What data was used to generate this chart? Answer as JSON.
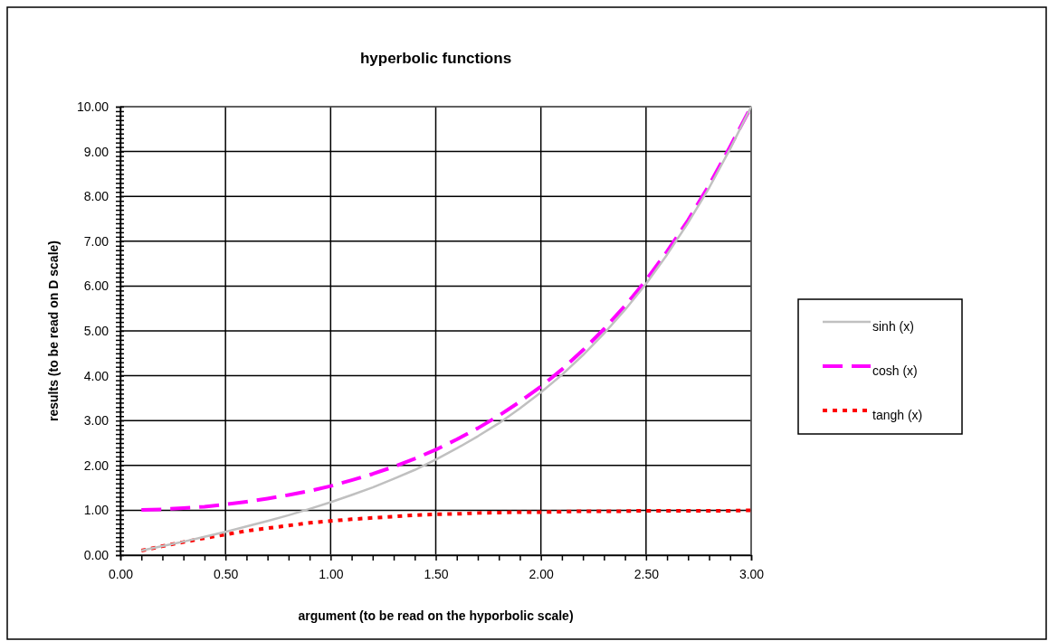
{
  "chart_data": {
    "type": "line",
    "title": "hyperbolic functions",
    "xlabel": "argument (to be read on the hyporbolic scale)",
    "ylabel": "results (to be read on D scale)",
    "x": [
      0.1,
      0.2,
      0.3,
      0.4,
      0.5,
      0.6,
      0.7,
      0.8,
      0.9,
      1.0,
      1.1,
      1.2,
      1.3,
      1.4,
      1.5,
      1.6,
      1.7,
      1.8,
      1.9,
      2.0,
      2.1,
      2.2,
      2.3,
      2.4,
      2.5,
      2.6,
      2.7,
      2.8,
      2.9,
      3.0
    ],
    "series": [
      {
        "name": "sinh (x)",
        "color": "#c0c0c0",
        "line_style": "solid",
        "values": [
          0.1,
          0.2,
          0.3,
          0.41,
          0.52,
          0.64,
          0.76,
          0.89,
          1.03,
          1.18,
          1.34,
          1.51,
          1.7,
          1.9,
          2.13,
          2.38,
          2.65,
          2.94,
          3.27,
          3.63,
          4.02,
          4.46,
          4.94,
          5.47,
          6.05,
          6.7,
          7.41,
          8.19,
          9.06,
          10.0
        ]
      },
      {
        "name": "cosh (x)",
        "color": "#ff00ff",
        "line_style": "dashed",
        "values": [
          1.01,
          1.02,
          1.05,
          1.08,
          1.13,
          1.19,
          1.26,
          1.34,
          1.43,
          1.54,
          1.67,
          1.81,
          1.97,
          2.15,
          2.35,
          2.58,
          2.83,
          3.11,
          3.42,
          3.76,
          4.14,
          4.57,
          5.04,
          5.56,
          6.13,
          6.77,
          7.47,
          8.25,
          9.11,
          10.0
        ]
      },
      {
        "name": "tangh (x)",
        "color": "#ff0000",
        "line_style": "dotted",
        "values": [
          0.1,
          0.2,
          0.29,
          0.38,
          0.46,
          0.54,
          0.6,
          0.66,
          0.72,
          0.76,
          0.8,
          0.83,
          0.86,
          0.89,
          0.91,
          0.92,
          0.94,
          0.95,
          0.96,
          0.96,
          0.97,
          0.98,
          0.98,
          0.98,
          0.99,
          0.99,
          0.99,
          0.99,
          0.99,
          1.0
        ]
      }
    ],
    "xlim": [
      0,
      3
    ],
    "ylim": [
      0,
      10
    ],
    "xticks": [
      {
        "value": 0,
        "label": "0.00"
      },
      {
        "value": 0.1,
        "label": null
      },
      {
        "value": 0.2,
        "label": null
      },
      {
        "value": 0.3,
        "label": null
      },
      {
        "value": 0.4,
        "label": null
      },
      {
        "value": 0.5,
        "label": "0.50"
      },
      {
        "value": 0.6,
        "label": null
      },
      {
        "value": 0.7,
        "label": null
      },
      {
        "value": 0.8,
        "label": null
      },
      {
        "value": 0.9,
        "label": null
      },
      {
        "value": 1,
        "label": "1.00"
      },
      {
        "value": 1.1,
        "label": null
      },
      {
        "value": 1.2,
        "label": null
      },
      {
        "value": 1.3,
        "label": null
      },
      {
        "value": 1.4,
        "label": null
      },
      {
        "value": 1.5,
        "label": "1.50"
      },
      {
        "value": 1.6,
        "label": null
      },
      {
        "value": 1.7,
        "label": null
      },
      {
        "value": 1.8,
        "label": null
      },
      {
        "value": 1.9,
        "label": null
      },
      {
        "value": 2,
        "label": "2.00"
      },
      {
        "value": 2.1,
        "label": null
      },
      {
        "value": 2.2,
        "label": null
      },
      {
        "value": 2.3,
        "label": null
      },
      {
        "value": 2.4,
        "label": null
      },
      {
        "value": 2.5,
        "label": "2.50"
      },
      {
        "value": 2.6,
        "label": null
      },
      {
        "value": 2.7,
        "label": null
      },
      {
        "value": 2.8,
        "label": null
      },
      {
        "value": 2.9,
        "label": null
      },
      {
        "value": 3,
        "label": "3.00"
      }
    ],
    "yticks": [
      {
        "value": 0,
        "label": "0.00"
      },
      {
        "value": 0.1,
        "label": null
      },
      {
        "value": 0.2,
        "label": null
      },
      {
        "value": 0.3,
        "label": null
      },
      {
        "value": 0.4,
        "label": null
      },
      {
        "value": 0.5,
        "label": null
      },
      {
        "value": 0.6,
        "label": null
      },
      {
        "value": 0.7,
        "label": null
      },
      {
        "value": 0.8,
        "label": null
      },
      {
        "value": 0.9,
        "label": null
      },
      {
        "value": 1,
        "label": "1.00"
      },
      {
        "value": 1.1,
        "label": null
      },
      {
        "value": 1.2,
        "label": null
      },
      {
        "value": 1.3,
        "label": null
      },
      {
        "value": 1.4,
        "label": null
      },
      {
        "value": 1.5,
        "label": null
      },
      {
        "value": 1.6,
        "label": null
      },
      {
        "value": 1.7,
        "label": null
      },
      {
        "value": 1.8,
        "label": null
      },
      {
        "value": 1.9,
        "label": null
      },
      {
        "value": 2,
        "label": "2.00"
      },
      {
        "value": 2.1,
        "label": null
      },
      {
        "value": 2.2,
        "label": null
      },
      {
        "value": 2.3,
        "label": null
      },
      {
        "value": 2.4,
        "label": null
      },
      {
        "value": 2.5,
        "label": null
      },
      {
        "value": 2.6,
        "label": null
      },
      {
        "value": 2.7,
        "label": null
      },
      {
        "value": 2.8,
        "label": null
      },
      {
        "value": 2.9,
        "label": null
      },
      {
        "value": 3,
        "label": "3.00"
      },
      {
        "value": 3.1,
        "label": null
      },
      {
        "value": 3.2,
        "label": null
      },
      {
        "value": 3.3,
        "label": null
      },
      {
        "value": 3.4,
        "label": null
      },
      {
        "value": 3.5,
        "label": null
      },
      {
        "value": 3.6,
        "label": null
      },
      {
        "value": 3.7,
        "label": null
      },
      {
        "value": 3.8,
        "label": null
      },
      {
        "value": 3.9,
        "label": null
      },
      {
        "value": 4,
        "label": "4.00"
      },
      {
        "value": 4.1,
        "label": null
      },
      {
        "value": 4.2,
        "label": null
      },
      {
        "value": 4.3,
        "label": null
      },
      {
        "value": 4.4,
        "label": null
      },
      {
        "value": 4.5,
        "label": null
      },
      {
        "value": 4.6,
        "label": null
      },
      {
        "value": 4.7,
        "label": null
      },
      {
        "value": 4.8,
        "label": null
      },
      {
        "value": 4.9,
        "label": null
      },
      {
        "value": 5,
        "label": "5.00"
      },
      {
        "value": 5.1,
        "label": null
      },
      {
        "value": 5.2,
        "label": null
      },
      {
        "value": 5.3,
        "label": null
      },
      {
        "value": 5.4,
        "label": null
      },
      {
        "value": 5.5,
        "label": null
      },
      {
        "value": 5.6,
        "label": null
      },
      {
        "value": 5.7,
        "label": null
      },
      {
        "value": 5.8,
        "label": null
      },
      {
        "value": 5.9,
        "label": null
      },
      {
        "value": 6,
        "label": "6.00"
      },
      {
        "value": 6.1,
        "label": null
      },
      {
        "value": 6.2,
        "label": null
      },
      {
        "value": 6.3,
        "label": null
      },
      {
        "value": 6.4,
        "label": null
      },
      {
        "value": 6.5,
        "label": null
      },
      {
        "value": 6.6,
        "label": null
      },
      {
        "value": 6.7,
        "label": null
      },
      {
        "value": 6.8,
        "label": null
      },
      {
        "value": 6.9,
        "label": null
      },
      {
        "value": 7,
        "label": "7.00"
      },
      {
        "value": 7.1,
        "label": null
      },
      {
        "value": 7.2,
        "label": null
      },
      {
        "value": 7.3,
        "label": null
      },
      {
        "value": 7.4,
        "label": null
      },
      {
        "value": 7.5,
        "label": null
      },
      {
        "value": 7.6,
        "label": null
      },
      {
        "value": 7.7,
        "label": null
      },
      {
        "value": 7.8,
        "label": null
      },
      {
        "value": 7.9,
        "label": null
      },
      {
        "value": 8,
        "label": "8.00"
      },
      {
        "value": 8.1,
        "label": null
      },
      {
        "value": 8.2,
        "label": null
      },
      {
        "value": 8.3,
        "label": null
      },
      {
        "value": 8.4,
        "label": null
      },
      {
        "value": 8.5,
        "label": null
      },
      {
        "value": 8.6,
        "label": null
      },
      {
        "value": 8.7,
        "label": null
      },
      {
        "value": 8.8,
        "label": null
      },
      {
        "value": 8.9,
        "label": null
      },
      {
        "value": 9,
        "label": "9.00"
      },
      {
        "value": 9.1,
        "label": null
      },
      {
        "value": 9.2,
        "label": null
      },
      {
        "value": 9.3,
        "label": null
      },
      {
        "value": 9.4,
        "label": null
      },
      {
        "value": 9.5,
        "label": null
      },
      {
        "value": 9.6,
        "label": null
      },
      {
        "value": 9.7,
        "label": null
      },
      {
        "value": 9.8,
        "label": null
      },
      {
        "value": 9.9,
        "label": null
      },
      {
        "value": 10,
        "label": "10.00"
      }
    ],
    "grid": true,
    "legend": "right",
    "marker": "none"
  }
}
